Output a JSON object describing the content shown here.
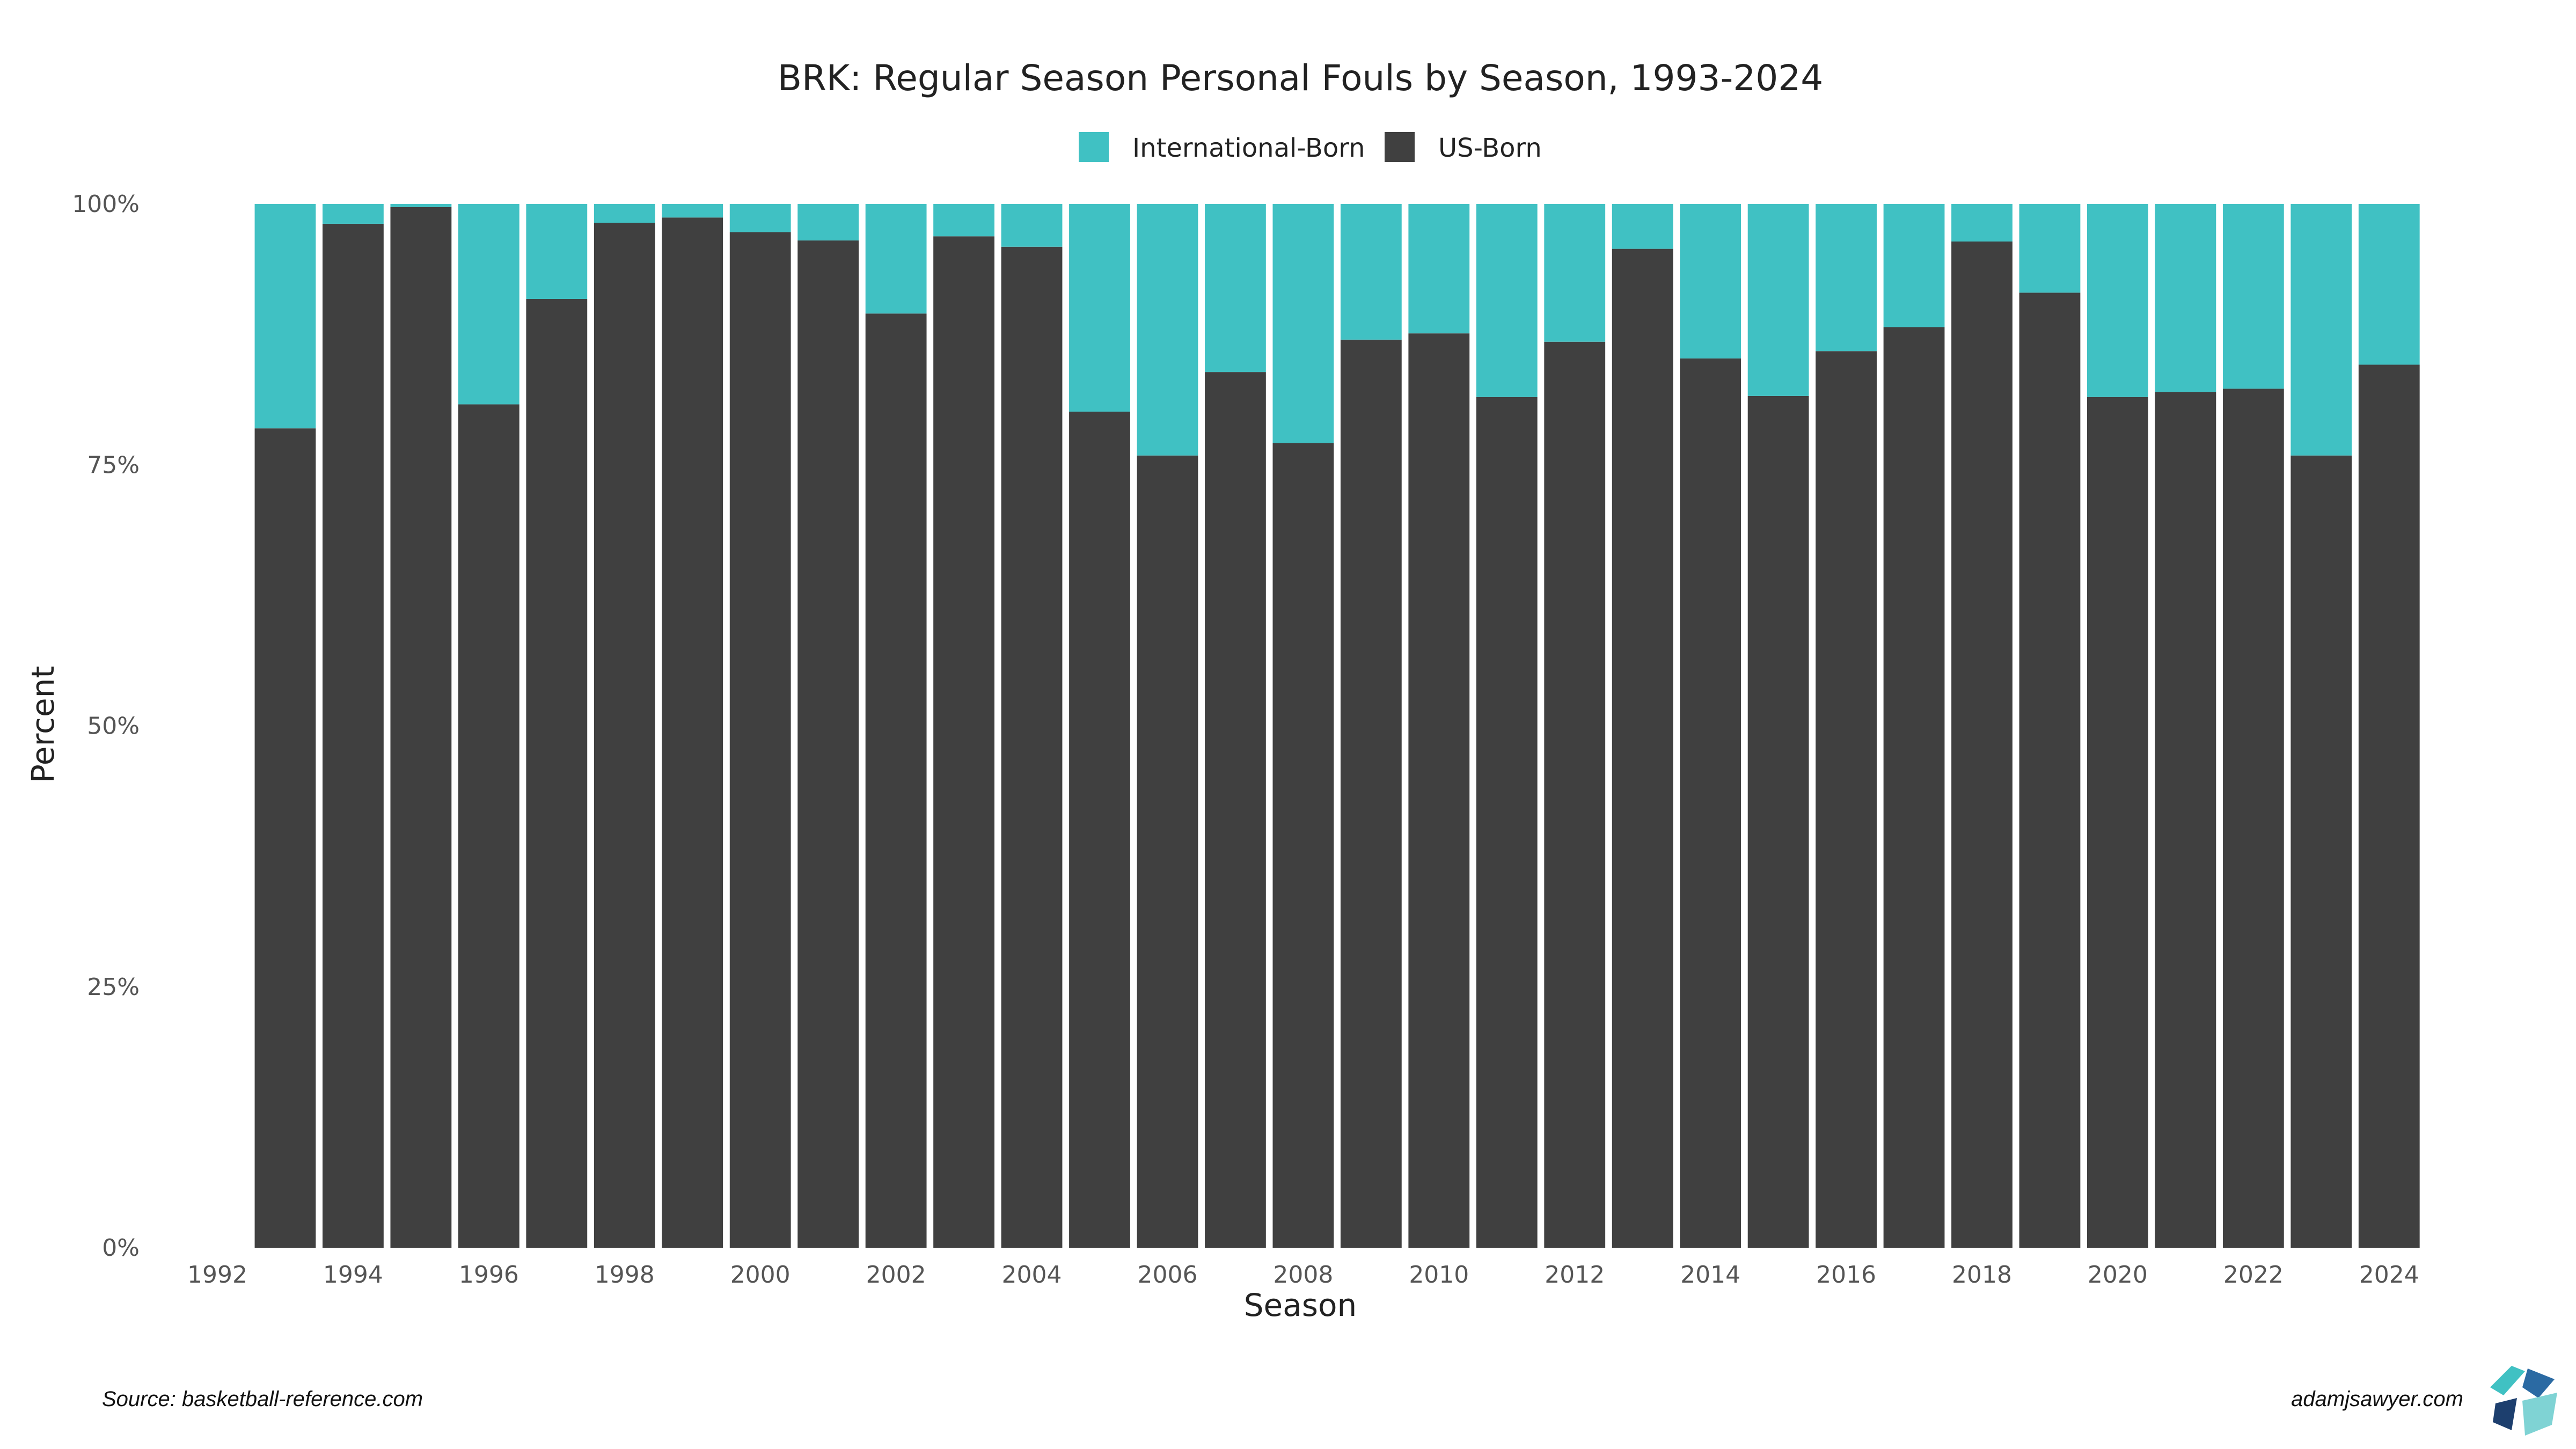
{
  "chart_data": {
    "type": "bar",
    "stacked": "percent",
    "title": "BRK: Regular Season Personal Fouls by Season, 1993-2024",
    "xlabel": "Season",
    "ylabel": "Percent",
    "ylim": [
      0,
      100
    ],
    "y_ticks": [
      "0%",
      "25%",
      "50%",
      "75%",
      "100%"
    ],
    "x_ticks": [
      "1992",
      "1994",
      "1996",
      "1998",
      "2000",
      "2002",
      "2004",
      "2006",
      "2008",
      "2010",
      "2012",
      "2014",
      "2016",
      "2018",
      "2020",
      "2022",
      "2024"
    ],
    "x_range": [
      1992,
      2024
    ],
    "legend_position": "top",
    "grid": false,
    "categories": [
      1993,
      1994,
      1995,
      1996,
      1997,
      1998,
      1999,
      2000,
      2001,
      2002,
      2003,
      2004,
      2005,
      2006,
      2007,
      2008,
      2009,
      2010,
      2011,
      2012,
      2013,
      2014,
      2015,
      2016,
      2017,
      2018,
      2019,
      2020,
      2021,
      2022,
      2023,
      2024
    ],
    "series": [
      {
        "name": "International-Born",
        "color": "#40c1c3",
        "values": [
          21.5,
          1.9,
          0.3,
          19.2,
          9.1,
          1.8,
          1.3,
          2.7,
          3.5,
          10.5,
          3.1,
          4.1,
          19.9,
          24.1,
          16.1,
          22.9,
          13.0,
          12.4,
          18.5,
          13.2,
          4.3,
          14.8,
          18.4,
          14.1,
          11.8,
          3.6,
          8.5,
          18.5,
          18.0,
          17.7,
          24.1,
          15.4
        ]
      },
      {
        "name": "US-Born",
        "color": "#404040",
        "values": [
          78.5,
          98.1,
          99.7,
          80.8,
          90.9,
          98.2,
          98.7,
          97.3,
          96.5,
          89.5,
          96.9,
          95.9,
          80.1,
          75.9,
          83.9,
          77.1,
          87.0,
          87.6,
          81.5,
          86.8,
          95.7,
          85.2,
          81.6,
          85.9,
          88.2,
          96.4,
          91.5,
          81.5,
          82.0,
          82.3,
          75.9,
          84.6
        ]
      }
    ]
  },
  "footer": {
    "source": "Source: basketball-reference.com",
    "credit": "adamjsawyer.com"
  },
  "logo": {
    "icon": "adamjsawyer-logo-icon",
    "colors": [
      "#40c1c3",
      "#2b6aa3",
      "#1d3f6e",
      "#7fd3d4"
    ]
  }
}
